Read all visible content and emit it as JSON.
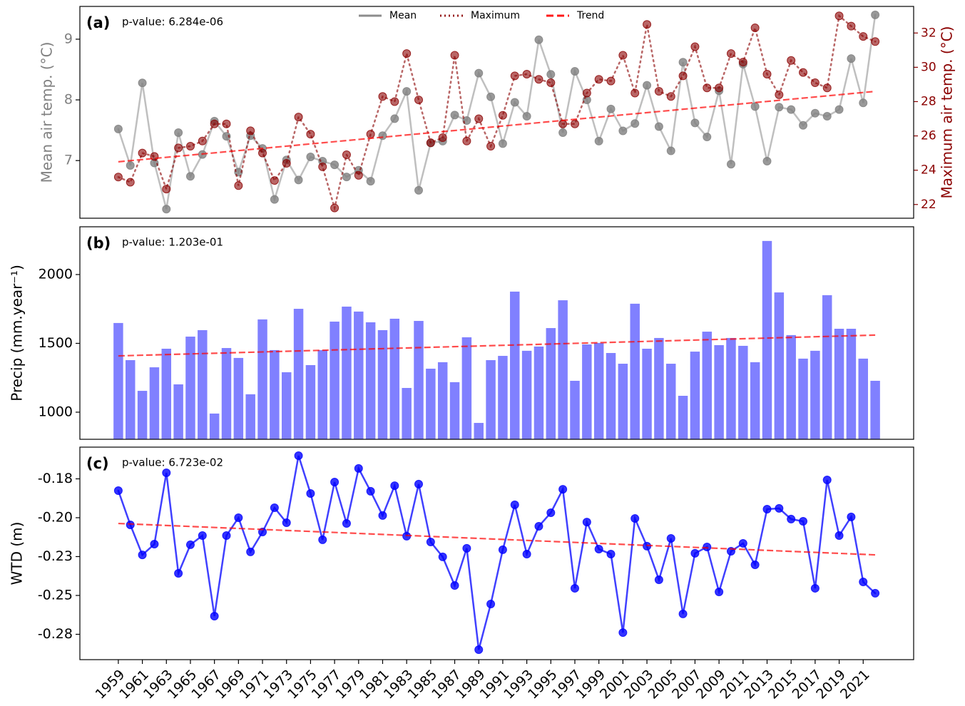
{
  "chart_data": [
    {
      "type": "line",
      "panel_label": "(a)",
      "annotation": "p-value: 6.284e-06",
      "ylabel": "Mean air temp. (°C)",
      "y2label": "Maximum air temp. (°C)",
      "x": [
        1959,
        1960,
        1961,
        1962,
        1963,
        1964,
        1965,
        1966,
        1967,
        1968,
        1969,
        1970,
        1971,
        1972,
        1973,
        1974,
        1975,
        1976,
        1977,
        1978,
        1979,
        1980,
        1981,
        1982,
        1983,
        1984,
        1985,
        1986,
        1987,
        1988,
        1989,
        1990,
        1991,
        1992,
        1993,
        1994,
        1995,
        1996,
        1997,
        1998,
        1999,
        2000,
        2001,
        2002,
        2003,
        2004,
        2005,
        2006,
        2007,
        2008,
        2009,
        2010,
        2011,
        2012,
        2013,
        2014,
        2015,
        2016,
        2017,
        2018,
        2019,
        2020,
        2021,
        2022
      ],
      "xlim": [
        1955.8,
        2025.2
      ],
      "ylim": [
        6.05,
        9.54
      ],
      "yticks": [
        7,
        8,
        9
      ],
      "y2lim": [
        21.2,
        33.55
      ],
      "y2ticks": [
        22,
        24,
        26,
        28,
        30,
        32
      ],
      "legend": "upper center",
      "series": [
        {
          "name": "Mean",
          "color": "gray",
          "style": "solid",
          "values": [
            7.52,
            6.92,
            8.28,
            6.96,
            6.2,
            7.46,
            6.74,
            7.1,
            7.65,
            7.4,
            6.81,
            7.41,
            7.2,
            6.36,
            7.01,
            6.68,
            7.06,
            6.99,
            6.93,
            6.73,
            6.84,
            6.66,
            7.41,
            7.69,
            8.14,
            6.51,
            7.29,
            7.32,
            7.75,
            7.66,
            8.44,
            8.05,
            7.28,
            7.96,
            7.73,
            8.99,
            8.42,
            7.46,
            8.47,
            8.0,
            7.32,
            7.85,
            7.49,
            7.61,
            8.24,
            7.56,
            7.16,
            8.62,
            7.62,
            7.39,
            8.15,
            6.94,
            8.59,
            7.89,
            6.99,
            7.88,
            7.84,
            7.58,
            7.78,
            7.73,
            7.84,
            8.68,
            7.95,
            9.4
          ]
        },
        {
          "name": "Maximum",
          "color": "darkred",
          "style": "dotted",
          "axis": "y2",
          "values": [
            23.6,
            23.3,
            25.0,
            24.8,
            22.9,
            25.3,
            25.4,
            25.7,
            26.7,
            26.7,
            23.1,
            26.3,
            25.0,
            23.4,
            24.4,
            27.1,
            26.1,
            24.2,
            21.8,
            24.9,
            23.7,
            26.1,
            28.3,
            28.0,
            30.8,
            28.1,
            25.6,
            25.9,
            30.7,
            25.7,
            27.0,
            25.4,
            27.2,
            29.5,
            29.6,
            29.3,
            29.1,
            26.7,
            26.7,
            28.5,
            29.3,
            29.2,
            30.7,
            28.5,
            32.5,
            28.6,
            28.3,
            29.5,
            31.2,
            28.8,
            28.8,
            30.8,
            30.3,
            32.3,
            29.6,
            28.4,
            30.4,
            29.7,
            29.1,
            28.8,
            33.0,
            32.4,
            31.8,
            31.5
          ]
        }
      ],
      "trend": {
        "name": "Trend",
        "color": "red",
        "x": [
          1959,
          2022
        ],
        "values": [
          6.98,
          8.14
        ]
      }
    },
    {
      "type": "bar",
      "panel_label": "(b)",
      "annotation": "p-value: 1.203e-01",
      "ylabel": "Precip (mm.year⁻¹)",
      "x": [
        1959,
        1960,
        1961,
        1962,
        1963,
        1964,
        1965,
        1966,
        1967,
        1968,
        1969,
        1970,
        1971,
        1972,
        1973,
        1974,
        1975,
        1976,
        1977,
        1978,
        1979,
        1980,
        1981,
        1982,
        1983,
        1984,
        1985,
        1986,
        1987,
        1988,
        1989,
        1990,
        1991,
        1992,
        1993,
        1994,
        1995,
        1996,
        1997,
        1998,
        1999,
        2000,
        2001,
        2002,
        2003,
        2004,
        2005,
        2006,
        2007,
        2008,
        2009,
        2010,
        2011,
        2012,
        2013,
        2014,
        2015,
        2016,
        2017,
        2018,
        2019,
        2020,
        2021,
        2022
      ],
      "xlim": [
        1955.8,
        2025.2
      ],
      "ylim": [
        803,
        2347
      ],
      "yticks": [
        1000,
        1500,
        2000
      ],
      "series": [
        {
          "color": "#8080ff",
          "values": [
            1648,
            1378,
            1155,
            1326,
            1461,
            1202,
            1549,
            1596,
            990,
            1466,
            1394,
            1130,
            1674,
            1451,
            1290,
            1751,
            1342,
            1451,
            1658,
            1767,
            1731,
            1653,
            1596,
            1679,
            1176,
            1663,
            1316,
            1363,
            1218,
            1544,
            922,
            1378,
            1409,
            1876,
            1446,
            1477,
            1611,
            1813,
            1228,
            1492,
            1503,
            1430,
            1352,
            1788,
            1461,
            1539,
            1352,
            1119,
            1440,
            1585,
            1487,
            1539,
            1482,
            1363,
            2244,
            1870,
            1560,
            1389,
            1446,
            1850,
            1606,
            1606,
            1389,
            1228
          ]
        }
      ],
      "trend": {
        "color": "red",
        "x": [
          1959,
          2022
        ],
        "values": [
          1409,
          1560
        ]
      }
    },
    {
      "type": "line",
      "panel_label": "(c)",
      "annotation": "p-value: 6.723e-02",
      "ylabel": "WTD (m)",
      "x": [
        1959,
        1960,
        1961,
        1962,
        1963,
        1964,
        1965,
        1966,
        1967,
        1968,
        1969,
        1970,
        1971,
        1972,
        1973,
        1974,
        1975,
        1976,
        1977,
        1978,
        1979,
        1980,
        1981,
        1982,
        1983,
        1984,
        1985,
        1986,
        1987,
        1988,
        1989,
        1990,
        1991,
        1992,
        1993,
        1994,
        1995,
        1996,
        1997,
        1998,
        1999,
        2000,
        2001,
        2002,
        2003,
        2004,
        2005,
        2006,
        2007,
        2008,
        2009,
        2010,
        2011,
        2012,
        2013,
        2014,
        2015,
        2016,
        2017,
        2018,
        2019,
        2020,
        2021,
        2022
      ],
      "xlim": [
        1955.8,
        2025.2
      ],
      "ylim": [
        -0.2913,
        -0.1546
      ],
      "yticks": [
        {
          "value": -0.175,
          "label": "-0.18"
        },
        {
          "value": -0.2,
          "label": "-0.20"
        },
        {
          "value": -0.225,
          "label": "-0.23"
        },
        {
          "value": -0.25,
          "label": "-0.25"
        },
        {
          "value": -0.275,
          "label": "-0.28"
        }
      ],
      "xticks": [
        1959,
        1961,
        1963,
        1965,
        1967,
        1969,
        1971,
        1973,
        1975,
        1977,
        1979,
        1981,
        1983,
        1985,
        1987,
        1989,
        1991,
        1993,
        1995,
        1997,
        1999,
        2001,
        2003,
        2005,
        2007,
        2009,
        2011,
        2013,
        2015,
        2017,
        2019,
        2021
      ],
      "series": [
        {
          "color": "blue",
          "style": "solid",
          "values": [
            -0.1826,
            -0.2046,
            -0.2239,
            -0.217,
            -0.1711,
            -0.2358,
            -0.2174,
            -0.2115,
            -0.2633,
            -0.2115,
            -0.2,
            -0.222,
            -0.2092,
            -0.1936,
            -0.2032,
            -0.1601,
            -0.1844,
            -0.2142,
            -0.1771,
            -0.2037,
            -0.1683,
            -0.183,
            -0.1986,
            -0.1794,
            -0.2119,
            -0.1784,
            -0.2156,
            -0.2252,
            -0.2436,
            -0.2197,
            -0.2849,
            -0.2555,
            -0.2206,
            -0.1917,
            -0.2234,
            -0.2055,
            -0.1968,
            -0.1817,
            -0.2454,
            -0.2028,
            -0.2202,
            -0.2234,
            -0.2739,
            -0.2005,
            -0.2183,
            -0.2399,
            -0.2133,
            -0.2619,
            -0.2229,
            -0.2188,
            -0.2477,
            -0.2216,
            -0.2165,
            -0.2303,
            -0.1945,
            -0.194,
            -0.2009,
            -0.2023,
            -0.2454,
            -0.1757,
            -0.2115,
            -0.1995,
            -0.2413,
            -0.2486
          ]
        }
      ],
      "trend": {
        "color": "red",
        "x": [
          1959,
          2022
        ],
        "values": [
          -0.2037,
          -0.2239
        ]
      }
    }
  ]
}
